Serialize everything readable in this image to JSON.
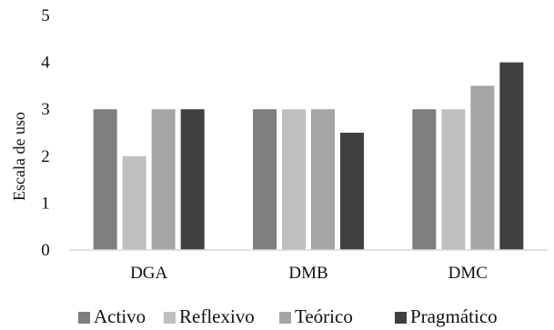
{
  "chart_data": {
    "type": "bar",
    "title": "",
    "xlabel": "",
    "ylabel": "Escala de uso",
    "ylim": [
      0,
      5
    ],
    "yticks": [
      0,
      1,
      2,
      3,
      4,
      5
    ],
    "grid": false,
    "legend_position": "bottom",
    "categories": [
      "DGA",
      "DMB",
      "DMC"
    ],
    "series": [
      {
        "name": "Activo",
        "color": "#7f7f7f",
        "values": [
          3,
          3,
          3
        ]
      },
      {
        "name": "Reflexivo",
        "color": "#bfbfbf",
        "values": [
          2,
          3,
          3
        ]
      },
      {
        "name": "Teórico",
        "color": "#a5a5a5",
        "values": [
          3,
          3,
          3.5
        ]
      },
      {
        "name": "Pragmático",
        "color": "#404040",
        "values": [
          3,
          2.5,
          4
        ]
      }
    ],
    "axis_color": "#d9d9d9"
  }
}
